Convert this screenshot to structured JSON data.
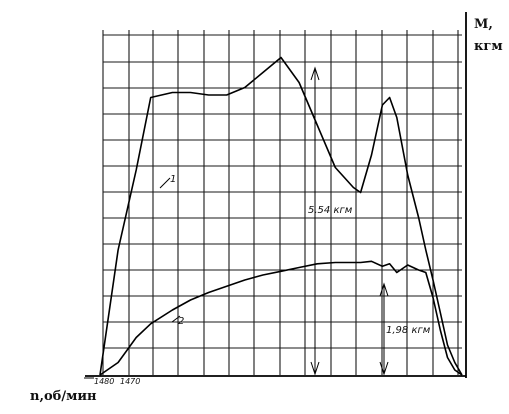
{
  "chart_data": {
    "type": "line",
    "title": "",
    "ylabel_line1": "М,",
    "ylabel_line2": "кгм",
    "xlabel": "n,об/мин",
    "x_tick_labels": [
      "1480",
      "1470"
    ],
    "grid": true,
    "x": [
      0,
      5,
      10,
      14,
      20,
      25,
      30,
      35,
      40,
      45,
      50,
      55,
      60,
      65,
      70,
      72,
      75,
      78,
      80,
      82,
      85,
      88,
      90,
      92,
      94,
      96,
      98,
      100
    ],
    "series": [
      {
        "name": "1",
        "values": [
          0,
          5.0,
          8.2,
          11.1,
          11.3,
          11.3,
          11.2,
          11.2,
          11.5,
          12.1,
          12.7,
          11.7,
          10.0,
          8.3,
          7.5,
          7.3,
          8.8,
          10.8,
          11.1,
          10.3,
          8.0,
          6.3,
          5.0,
          3.8,
          2.5,
          1.2,
          0.5,
          0
        ]
      },
      {
        "name": "2",
        "values": [
          0,
          0.5,
          1.5,
          2.05,
          2.6,
          3.0,
          3.3,
          3.55,
          3.8,
          4.0,
          4.15,
          4.3,
          4.45,
          4.5,
          4.5,
          4.5,
          4.55,
          4.35,
          4.45,
          4.1,
          4.4,
          4.2,
          4.1,
          3.1,
          1.8,
          0.7,
          0.2,
          0
        ]
      }
    ],
    "annotations": [
      "5,54 кгм",
      "1,98 кгм"
    ]
  }
}
